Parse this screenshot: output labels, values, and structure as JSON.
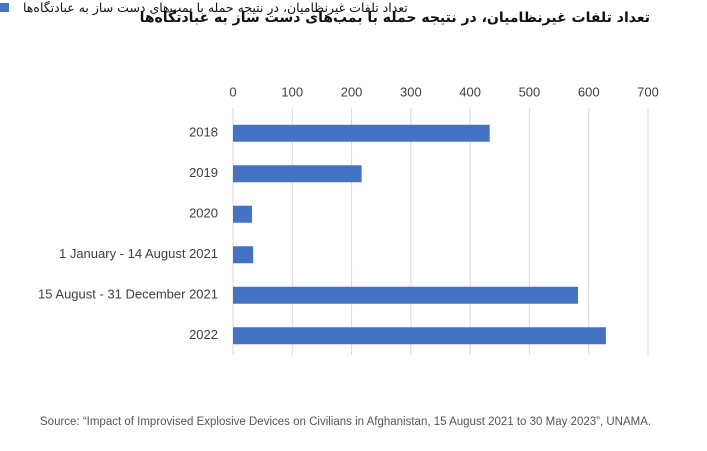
{
  "chart_data": {
    "type": "bar",
    "orientation": "horizontal",
    "title": "تعداد تلفات غیرنظامیان، در نتیجه حمله با بمب‌های دست ساز به عبادتگاه‌ها",
    "categories": [
      "2018",
      "2019",
      "2020",
      "1 January - 14 August 2021",
      "15 August - 31 December 2021",
      "2022"
    ],
    "series": [
      {
        "name": "تعداد تلفات غیرنظامیان، در نتیجه حمله با بمب‌های دست ساز به عبادتگاه‌ها",
        "color": "#4472c4",
        "values": [
          433,
          217,
          32,
          34,
          582,
          629
        ]
      }
    ],
    "xlim": [
      0,
      700
    ],
    "xticks": [
      0,
      100,
      200,
      300,
      400,
      500,
      600,
      700
    ],
    "grid": true,
    "source": "Source: “Impact of Improvised Explosive Devices on Civilians in Afghanistan, 15 August 2021 to 30 May 2023”, UNAMA."
  }
}
